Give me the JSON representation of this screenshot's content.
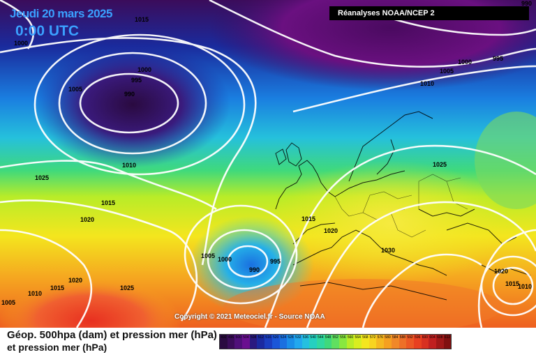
{
  "header": {
    "date": "Jeudi 20 mars 2025",
    "time": "0:00 UTC",
    "source": "Réanalyses NOAA/NCEP 2",
    "corner_value": "990"
  },
  "map": {
    "copyright": "Copyright © 2021 Meteociel.fr - Source NOAA",
    "isobars": [
      "1015",
      "1000",
      "1000",
      "995",
      "990",
      "1005",
      "1010",
      "1000",
      "1005",
      "1010",
      "995",
      "1025",
      "1015",
      "1020",
      "1015",
      "1020",
      "1005",
      "1000",
      "990",
      "995",
      "1030",
      "1025",
      "1020",
      "1015",
      "1010",
      "1005",
      "1010",
      "1015",
      "1020",
      "1025"
    ],
    "colors": {
      "low_core": "#2a0a40",
      "low": "#1a2aa0",
      "mid": "#25c0e0",
      "high": "#f5e020",
      "high_core": "#f05020"
    }
  },
  "footer": {
    "title_line1": "Géop. 500hpa (dam) et pression mer (hPa)",
    "title_line2": "et pression mer (hPa)",
    "scale_values": [
      "492",
      "496",
      "500",
      "504",
      "508",
      "512",
      "516",
      "520",
      "524",
      "528",
      "532",
      "536",
      "540",
      "544",
      "548",
      "552",
      "556",
      "560",
      "564",
      "568",
      "572",
      "576",
      "580",
      "584",
      "588",
      "592",
      "596",
      "600",
      "604",
      "608",
      "612"
    ]
  }
}
